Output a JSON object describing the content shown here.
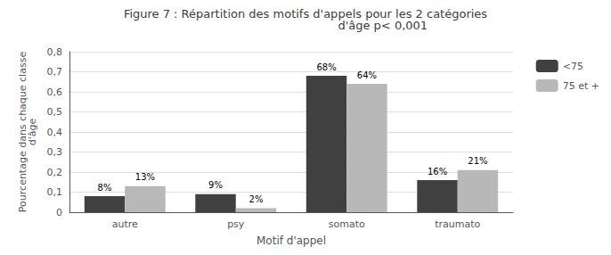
{
  "chart_data": {
    "type": "bar",
    "title": "Figure 7 : Répartition des motifs d'appels pour les 2 catégories\n                                          d'âge p< 0,001",
    "categories": [
      "autre",
      "psy",
      "somato",
      "traumato"
    ],
    "series": [
      {
        "name": "<75",
        "color": "#404040",
        "values": [
          0.08,
          0.09,
          0.68,
          0.16
        ],
        "value_labels": [
          "8%",
          "9%",
          "68%",
          "16%"
        ]
      },
      {
        "name": "75 et +",
        "color": "#b8b8b8",
        "values": [
          0.13,
          0.02,
          0.64,
          0.21
        ],
        "value_labels": [
          "13%",
          "2%",
          "64%",
          "21%"
        ]
      }
    ],
    "xlabel": "Motif d'appel",
    "ylabel": "Pourcentage dans chaque classe\nd'âge",
    "ylim": [
      0,
      0.8
    ],
    "yticks": [
      0,
      {
        "value": 0.1,
        "label": "0,1"
      },
      {
        "value": 0.2,
        "label": "0,2"
      },
      {
        "value": 0.3,
        "label": "0,3"
      },
      {
        "value": 0.4,
        "label": "0,4"
      },
      {
        "value": 0.5,
        "label": "0,5"
      },
      {
        "value": 0.6,
        "label": "0,6"
      },
      {
        "value": 0.7,
        "label": "0,7"
      },
      {
        "value": 0.8,
        "label": "0,8"
      }
    ],
    "grid": true,
    "legend": "upper right",
    "data_labels": true
  }
}
